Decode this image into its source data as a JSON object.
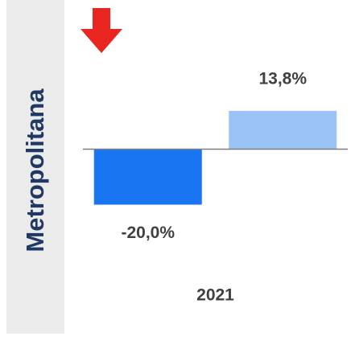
{
  "chart_data": {
    "type": "bar",
    "title": "Metropolitana",
    "categories": [
      "2021"
    ],
    "series": [
      {
        "color": "#1a75f2",
        "values": [
          -20.0
        ],
        "value_labels": [
          "-20,0%"
        ]
      },
      {
        "color": "#9cc3f6",
        "values": [
          13.8
        ],
        "value_labels": [
          "13,8%"
        ]
      }
    ],
    "ylim": [
      -30,
      20
    ]
  }
}
